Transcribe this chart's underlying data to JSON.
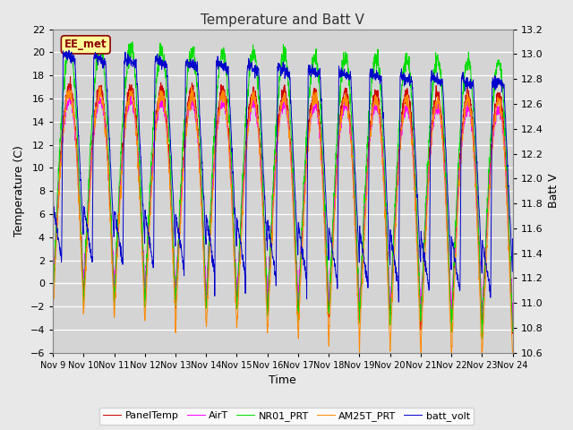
{
  "title": "Temperature and Batt V",
  "xlabel": "Time",
  "ylabel_left": "Temperature (C)",
  "ylabel_right": "Batt V",
  "ylim_left": [
    -6,
    22
  ],
  "ylim_right": [
    10.6,
    13.2
  ],
  "yticks_left": [
    -6,
    -4,
    -2,
    0,
    2,
    4,
    6,
    8,
    10,
    12,
    14,
    16,
    18,
    20,
    22
  ],
  "yticks_right": [
    10.6,
    10.8,
    11.0,
    11.2,
    11.4,
    11.6,
    11.8,
    12.0,
    12.2,
    12.4,
    12.6,
    12.8,
    13.0,
    13.2
  ],
  "xtick_days": [
    9,
    10,
    11,
    12,
    13,
    14,
    15,
    16,
    17,
    18,
    19,
    20,
    21,
    22,
    23,
    24
  ],
  "watermark": "EE_met",
  "colors": {
    "PanelTemp": "#cc0000",
    "AirT": "#ff00ff",
    "NR01_PRT": "#00dd00",
    "AM25T_PRT": "#ff8800",
    "batt_volt": "#0000cc"
  },
  "legend_labels": [
    "PanelTemp",
    "AirT",
    "NR01_PRT",
    "AM25T_PRT",
    "batt_volt"
  ],
  "fig_bg_color": "#e8e8e8",
  "plot_bg_color": "#d4d4d4",
  "grid_color": "#ffffff",
  "title_fontsize": 11,
  "label_fontsize": 9,
  "tick_fontsize": 8,
  "legend_fontsize": 8,
  "watermark_text_color": "#8B0000",
  "watermark_bg_color": "#ffff99",
  "watermark_edge_color": "#8B0000"
}
